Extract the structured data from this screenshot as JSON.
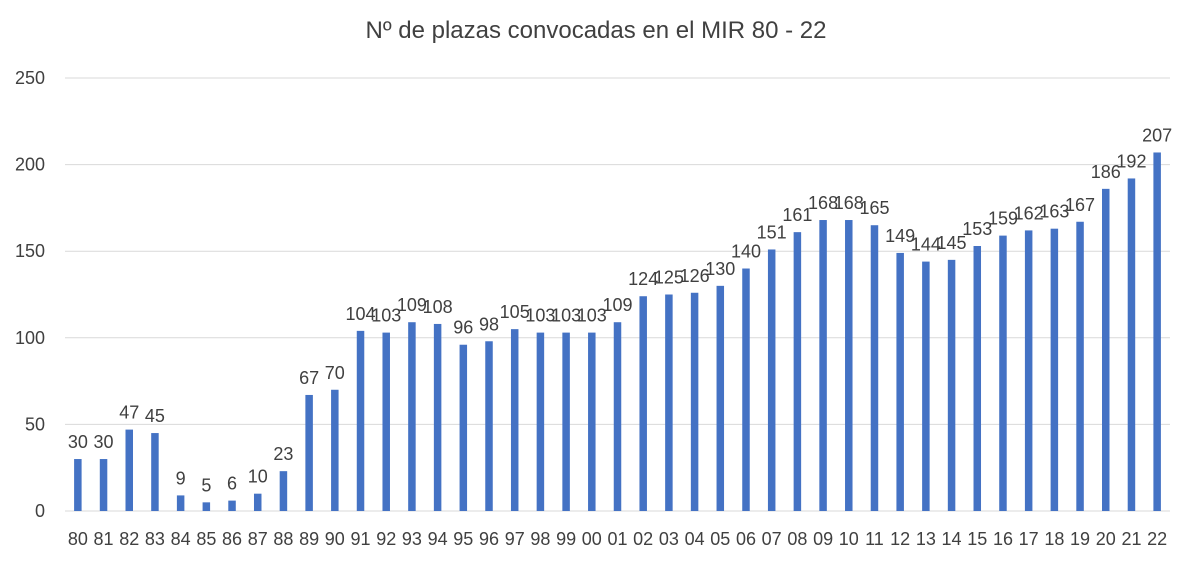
{
  "chart_data": {
    "type": "bar",
    "title": "Nº de plazas convocadas en el MIR 80 - 22",
    "xlabel": "",
    "ylabel": "",
    "ylim": [
      0,
      250
    ],
    "yticks": [
      0,
      50,
      100,
      150,
      200,
      250
    ],
    "grid": true,
    "legend": "none",
    "bar_color": "#4472c4",
    "categories": [
      "80",
      "81",
      "82",
      "83",
      "84",
      "85",
      "86",
      "87",
      "88",
      "89",
      "90",
      "91",
      "92",
      "93",
      "94",
      "95",
      "96",
      "97",
      "98",
      "99",
      "00",
      "01",
      "02",
      "03",
      "04",
      "05",
      "06",
      "07",
      "08",
      "09",
      "10",
      "11",
      "12",
      "13",
      "14",
      "15",
      "16",
      "17",
      "18",
      "19",
      "20",
      "21",
      "22"
    ],
    "values": [
      30,
      30,
      47,
      45,
      9,
      5,
      6,
      10,
      23,
      67,
      70,
      104,
      103,
      109,
      108,
      96,
      98,
      105,
      103,
      103,
      103,
      109,
      124,
      125,
      126,
      130,
      140,
      151,
      161,
      168,
      168,
      165,
      149,
      144,
      145,
      153,
      159,
      162,
      163,
      167,
      186,
      192,
      207
    ]
  }
}
